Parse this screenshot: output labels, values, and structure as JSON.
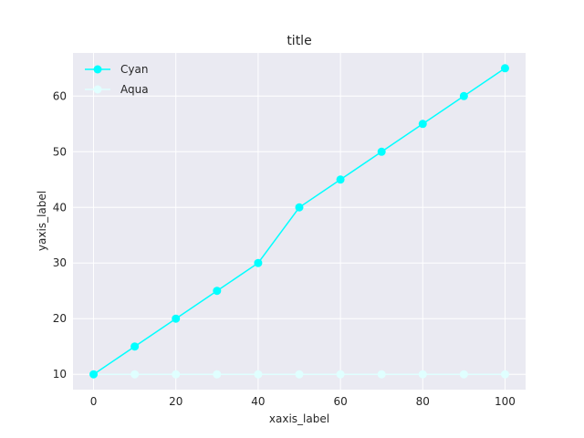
{
  "chart_data": {
    "type": "line",
    "title": "title",
    "xlabel": "xaxis_label",
    "ylabel": "yaxis_label",
    "xlim": [
      -5,
      105
    ],
    "ylim": [
      7.25,
      67.75
    ],
    "xticks": [
      0,
      20,
      40,
      60,
      80,
      100
    ],
    "yticks": [
      10,
      20,
      30,
      40,
      50,
      60
    ],
    "grid": true,
    "legend_position": "top-left",
    "background_color": "#eaeaf2",
    "series": [
      {
        "name": "Cyan",
        "color": "#00ffff",
        "marker": "circle",
        "x": [
          0,
          10,
          20,
          30,
          40,
          50,
          60,
          70,
          80,
          90,
          100
        ],
        "y": [
          10,
          15,
          20,
          25,
          30,
          40,
          45,
          50,
          55,
          60,
          65
        ]
      },
      {
        "name": "Aqua",
        "color": "#e0ffff",
        "marker": "circle",
        "x": [
          0,
          10,
          20,
          30,
          40,
          50,
          60,
          70,
          80,
          90,
          100
        ],
        "y": [
          10,
          10,
          10,
          10,
          10,
          10,
          10,
          10,
          10,
          10,
          10
        ]
      }
    ]
  }
}
